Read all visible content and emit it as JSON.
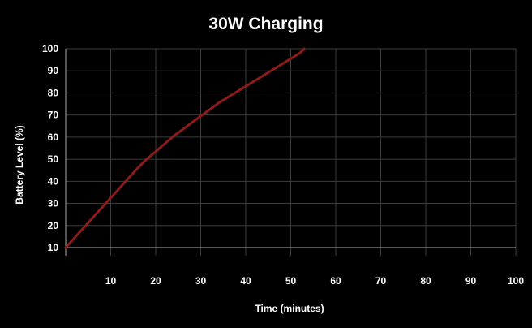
{
  "chart_data": {
    "type": "line",
    "title": "30W Charging",
    "xlabel": "Time (minutes)",
    "ylabel": "Battery Level (%)",
    "xlim": [
      0,
      100
    ],
    "ylim": [
      10,
      100
    ],
    "x_ticks": [
      "10",
      "20",
      "30",
      "40",
      "50",
      "60",
      "70",
      "80",
      "90",
      "100"
    ],
    "y_ticks": [
      "10",
      "20",
      "30",
      "40",
      "50",
      "60",
      "70",
      "80",
      "90",
      "100"
    ],
    "grid": true,
    "legend": "none",
    "series": [
      {
        "x": [
          0,
          2,
          4,
          6,
          8,
          10,
          12,
          14,
          16,
          18,
          20,
          22,
          24,
          26,
          28,
          30,
          32,
          34,
          36,
          38,
          40,
          42,
          44,
          46,
          48,
          50,
          52,
          53
        ],
        "y": [
          10,
          14.5,
          19,
          23.5,
          28,
          32.5,
          37,
          41.5,
          46,
          50,
          53.5,
          57,
          60.5,
          63.5,
          66.5,
          69.5,
          72.5,
          75.5,
          78,
          80.5,
          83,
          85.5,
          88,
          90.5,
          93,
          95.5,
          98,
          100
        ]
      }
    ],
    "colors": {
      "background": "#000000",
      "grid": "#3c3c3c",
      "axis": "#aaaaaa",
      "text": "#ffffff",
      "line": "#8c1c1c"
    }
  }
}
